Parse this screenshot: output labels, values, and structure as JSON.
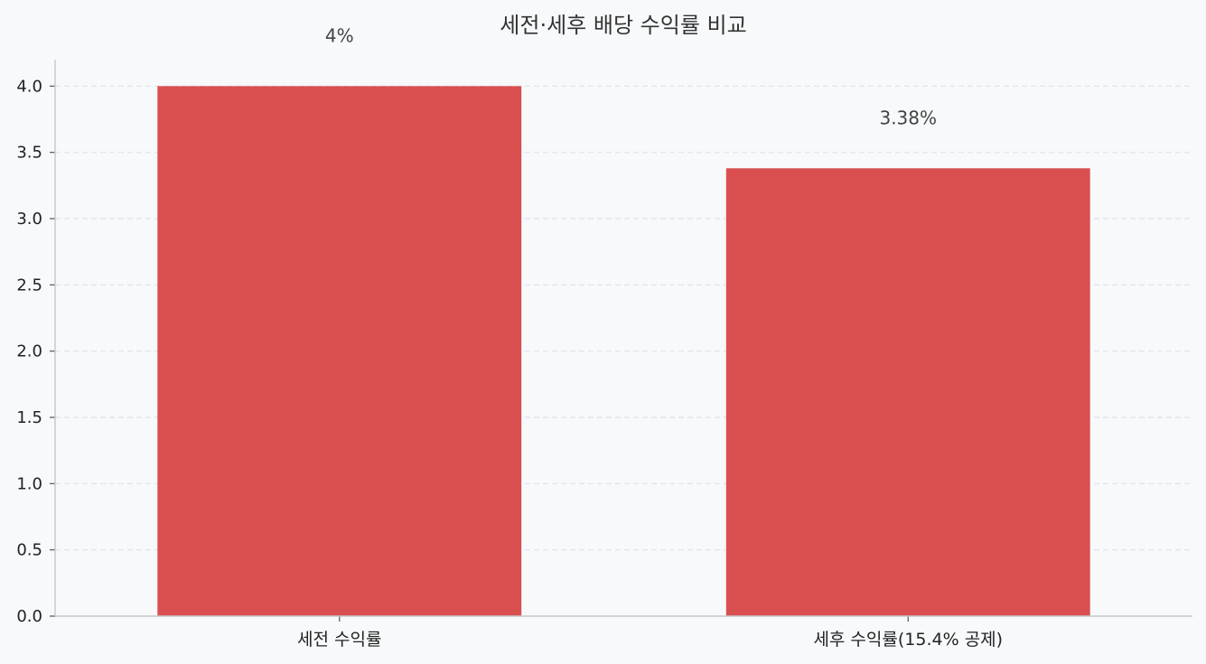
{
  "chart_data": {
    "type": "bar",
    "title": "세전·세후 배당 수익률 비교",
    "xlabel": "",
    "ylabel": "",
    "categories": [
      "세전 수익률",
      "세후 수익률(15.4% 공제)"
    ],
    "values": [
      4,
      3.38
    ],
    "value_labels": [
      "4%",
      "3.38%"
    ],
    "ylim": [
      0,
      4.2
    ],
    "yticks": [
      0.0,
      0.5,
      1.0,
      1.5,
      2.0,
      2.5,
      3.0,
      3.5,
      4.0
    ],
    "ytick_labels": [
      "0.0",
      "0.5",
      "1.0",
      "1.5",
      "2.0",
      "2.5",
      "3.0",
      "3.5",
      "4.0"
    ],
    "grid": "y-dashed",
    "legend": "none",
    "bar_color": "#d94f50",
    "grid_color": "#dde3e8",
    "axis_color": "#c4c8cc"
  }
}
